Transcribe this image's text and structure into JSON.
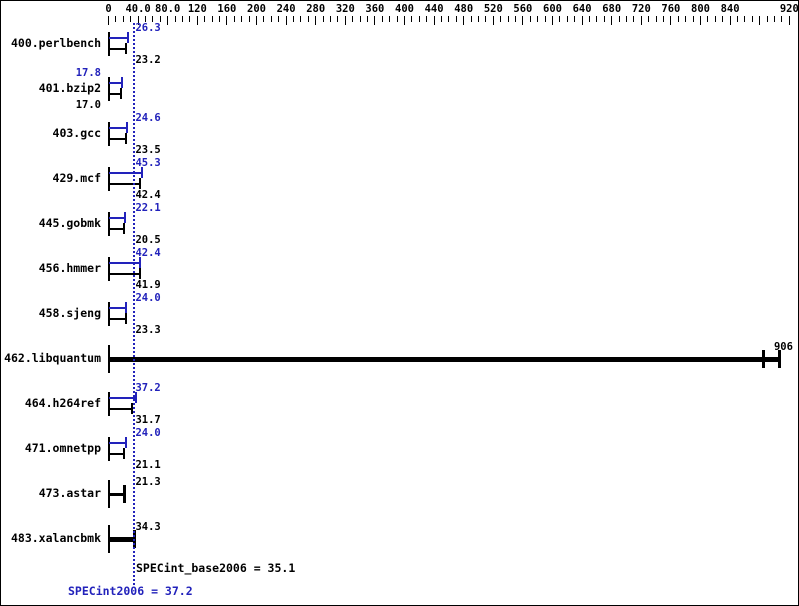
{
  "chart_data": {
    "type": "bar",
    "orientation": "horizontal",
    "description": "SPEC CPU2006 integer benchmark result graph; blue I-beam bars are peak (SPECint2006) ratios, black I-beam bars are base (SPECint_base2006) ratios; bold single black bars mean one result shown",
    "x_axis": {
      "min": 0,
      "max": 920,
      "minor_step": 10,
      "major_step": 40,
      "grid": false,
      "major_tick_labels": [
        {
          "value": 0,
          "label": "0"
        },
        {
          "value": 40,
          "label": "40.0"
        },
        {
          "value": 80,
          "label": "80.0"
        },
        {
          "value": 120,
          "label": "120"
        },
        {
          "value": 160,
          "label": "160"
        },
        {
          "value": 200,
          "label": "200"
        },
        {
          "value": 240,
          "label": "240"
        },
        {
          "value": 280,
          "label": "280"
        },
        {
          "value": 320,
          "label": "320"
        },
        {
          "value": 360,
          "label": "360"
        },
        {
          "value": 400,
          "label": "400"
        },
        {
          "value": 440,
          "label": "440"
        },
        {
          "value": 480,
          "label": "480"
        },
        {
          "value": 520,
          "label": "520"
        },
        {
          "value": 560,
          "label": "560"
        },
        {
          "value": 600,
          "label": "600"
        },
        {
          "value": 640,
          "label": "640"
        },
        {
          "value": 680,
          "label": "680"
        },
        {
          "value": 720,
          "label": "720"
        },
        {
          "value": 760,
          "label": "760"
        },
        {
          "value": 800,
          "label": "800"
        },
        {
          "value": 840,
          "label": "840"
        },
        {
          "value": 920,
          "label": "920"
        }
      ]
    },
    "benchmarks": [
      {
        "name": "400.perlbench",
        "style": "pair",
        "peak": 26.3,
        "base": 23.2,
        "label_side": "right"
      },
      {
        "name": "401.bzip2",
        "style": "pair",
        "peak": 17.8,
        "base": 17.0,
        "label_side": "left"
      },
      {
        "name": "403.gcc",
        "style": "pair",
        "peak": 24.6,
        "base": 23.5,
        "label_side": "right"
      },
      {
        "name": "429.mcf",
        "style": "pair",
        "peak": 45.3,
        "base": 42.4,
        "label_side": "right"
      },
      {
        "name": "445.gobmk",
        "style": "pair",
        "peak": 22.1,
        "base": 20.5,
        "label_side": "right"
      },
      {
        "name": "456.hmmer",
        "style": "pair",
        "peak": 42.4,
        "base": 41.9,
        "label_side": "right"
      },
      {
        "name": "458.sjeng",
        "style": "pair",
        "peak": 24.0,
        "base": 23.3,
        "label_side": "right"
      },
      {
        "name": "462.libquantum",
        "style": "single",
        "value": 906,
        "thickness": 5,
        "double_cap": true,
        "label_at_end": true
      },
      {
        "name": "464.h264ref",
        "style": "pair",
        "peak": 37.2,
        "base": 31.7,
        "label_side": "right"
      },
      {
        "name": "471.omnetpp",
        "style": "pair",
        "peak": 24.0,
        "base": 21.1,
        "label_side": "right"
      },
      {
        "name": "473.astar",
        "style": "single",
        "value": 21.3,
        "thickness": 3,
        "double_cap": false,
        "label_at_end": false
      },
      {
        "name": "483.xalancbmk",
        "style": "single",
        "value": 34.3,
        "thickness": 5,
        "double_cap": false,
        "label_at_end": false
      }
    ],
    "reference_line": {
      "value": 35.1,
      "style": "dotted"
    },
    "footer": {
      "base_label": "SPECint_base2006 = 35.1",
      "peak_label": "SPECint2006 = 37.2"
    },
    "colors": {
      "peak": "#2222bb",
      "base": "#000000",
      "reference": "#2222bb",
      "background": "#ffffff",
      "border": "#000000"
    }
  }
}
